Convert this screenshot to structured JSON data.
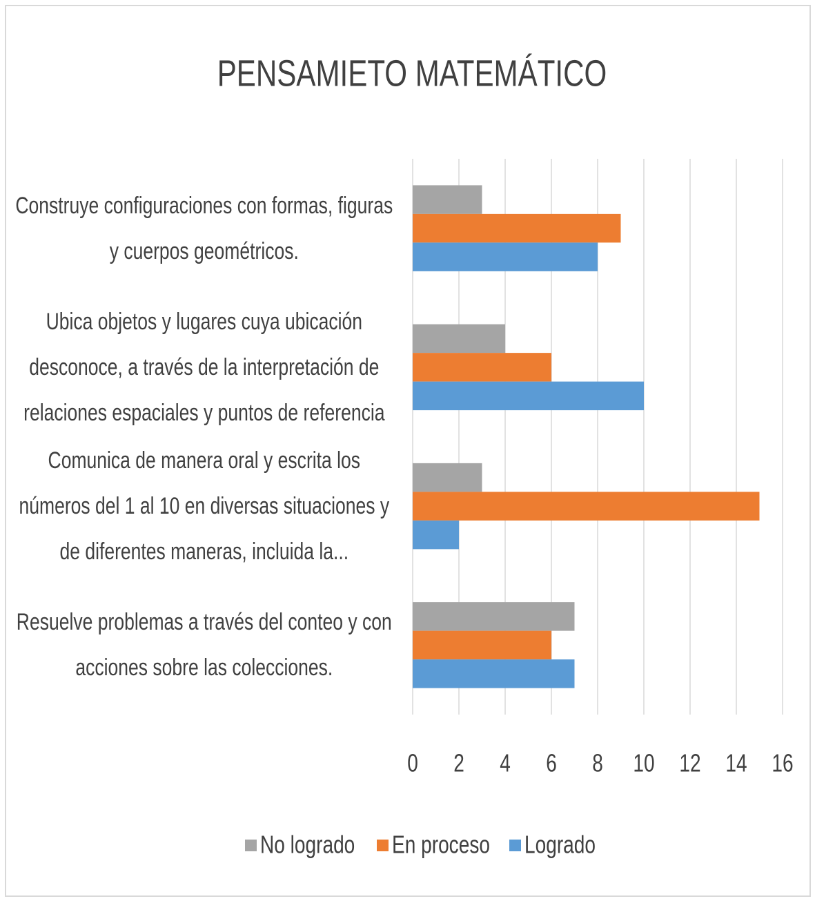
{
  "chart_data": {
    "type": "hbar",
    "title": "PENSAMIETO MATEMÁTICO",
    "categories": [
      "Construye configuraciones con formas, figuras y cuerpos geométricos.",
      "Ubica objetos y lugares cuya ubicación desconoce, a través de la interpretación de relaciones espaciales y puntos de referencia",
      "Comunica de manera oral y escrita los números del 1 al 10 en diversas situaciones y de diferentes maneras, incluida la...",
      "Resuelve problemas a través del conteo y con acciones sobre las colecciones."
    ],
    "series": [
      {
        "name": "No logrado",
        "color": "#a5a5a5",
        "values": [
          3,
          4,
          3,
          7
        ]
      },
      {
        "name": "En proceso",
        "color": "#ed7d31",
        "values": [
          9,
          6,
          15,
          6
        ]
      },
      {
        "name": "Logrado",
        "color": "#5b9bd5",
        "values": [
          8,
          10,
          2,
          7
        ]
      }
    ],
    "xlim": [
      0,
      16
    ],
    "xticks": [
      0,
      2,
      4,
      6,
      8,
      10,
      12,
      14,
      16
    ],
    "grid": true,
    "legend": "bottom"
  }
}
